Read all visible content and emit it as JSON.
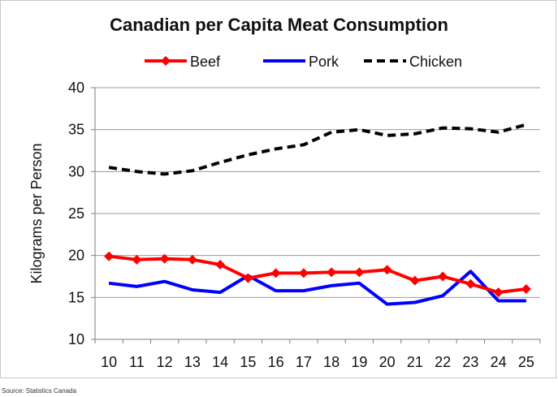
{
  "chart_data": {
    "type": "line",
    "title": "Canadian per Capita Meat Consumption",
    "xlabel": "",
    "ylabel": "Kilograms per Person",
    "x": [
      "10",
      "11",
      "12",
      "13",
      "14",
      "15",
      "16",
      "17",
      "18",
      "19",
      "20",
      "21",
      "22",
      "23",
      "24",
      "25"
    ],
    "ylim": [
      10,
      40
    ],
    "yticks": [
      "40",
      "35",
      "30",
      "25",
      "20",
      "15",
      "10"
    ],
    "grid": true,
    "legend_position": "top",
    "series": [
      {
        "name": "Beef",
        "color": "#ff0000",
        "style": "solid-diamond",
        "values": [
          19.9,
          19.5,
          19.6,
          19.5,
          18.9,
          17.3,
          17.9,
          17.9,
          18.0,
          18.0,
          18.3,
          17.0,
          17.5,
          16.6,
          15.6,
          16.0
        ]
      },
      {
        "name": "Pork",
        "color": "#0000ff",
        "style": "solid",
        "values": [
          16.7,
          16.3,
          16.9,
          15.9,
          15.6,
          17.6,
          15.8,
          15.8,
          16.4,
          16.7,
          14.2,
          14.4,
          15.2,
          18.1,
          14.6,
          14.6
        ]
      },
      {
        "name": "Chicken",
        "color": "#000000",
        "style": "dashed",
        "values": [
          30.5,
          30.0,
          29.7,
          30.1,
          31.1,
          32.0,
          32.7,
          33.2,
          34.7,
          35.0,
          34.3,
          34.5,
          35.2,
          35.1,
          34.7,
          35.6
        ]
      }
    ]
  },
  "source_text": "Source:  Statistics Canada"
}
